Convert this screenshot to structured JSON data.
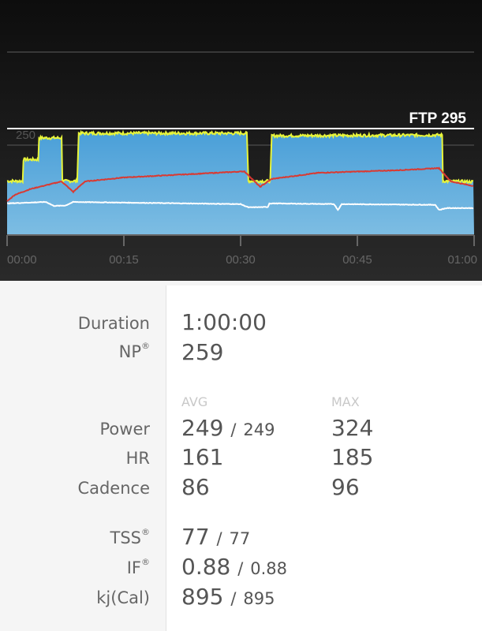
{
  "chart_data": {
    "type": "area",
    "x_unit": "minutes",
    "xlim": [
      0,
      60
    ],
    "ylim": [
      0,
      560
    ],
    "x_ticks": [
      "00:00",
      "00:15",
      "00:30",
      "00:45",
      "01:00"
    ],
    "y_ticks": [
      "250"
    ],
    "ftp_label": "FTP 295",
    "ftp": 295,
    "grid": true,
    "colors": {
      "power_fill": "#4a9fd8",
      "power_line": "#e8f53a",
      "hr": "#d93a32",
      "cadence": "#ffffff",
      "ftp": "#ffffff"
    },
    "series": [
      {
        "key": "power",
        "points": [
          [
            0,
            150
          ],
          [
            2,
            150
          ],
          [
            2.1,
            210
          ],
          [
            4,
            210
          ],
          [
            4.1,
            270
          ],
          [
            7,
            270
          ],
          [
            7.1,
            150
          ],
          [
            9,
            150
          ],
          [
            9.2,
            283
          ],
          [
            30.8,
            283
          ],
          [
            31,
            150
          ],
          [
            33.8,
            150
          ],
          [
            34,
            276
          ],
          [
            55.9,
            278
          ],
          [
            56,
            150
          ],
          [
            60,
            148
          ]
        ]
      },
      {
        "key": "hr",
        "points": [
          [
            0,
            94
          ],
          [
            1,
            112
          ],
          [
            3,
            128
          ],
          [
            7,
            149
          ],
          [
            8.5,
            120
          ],
          [
            10,
            149
          ],
          [
            15,
            160
          ],
          [
            25,
            171
          ],
          [
            30.5,
            177
          ],
          [
            32.5,
            134
          ],
          [
            34,
            156
          ],
          [
            40,
            173
          ],
          [
            50,
            180
          ],
          [
            55.5,
            186
          ],
          [
            57,
            149
          ],
          [
            60,
            136
          ]
        ]
      },
      {
        "key": "cadence",
        "points": [
          [
            0,
            88
          ],
          [
            5,
            92
          ],
          [
            6,
            81
          ],
          [
            7.5,
            82
          ],
          [
            8.5,
            92
          ],
          [
            30,
            86
          ],
          [
            31,
            77
          ],
          [
            33.5,
            78
          ],
          [
            33.7,
            88
          ],
          [
            42,
            86
          ],
          [
            42.5,
            70
          ],
          [
            43,
            86
          ],
          [
            55,
            84
          ],
          [
            55.5,
            70
          ],
          [
            56.5,
            75
          ],
          [
            60,
            75
          ]
        ]
      }
    ]
  },
  "stats": {
    "duration_label": "Duration",
    "duration": "1:00:00",
    "np_label": "NP",
    "np": "259",
    "avg_header": "AVG",
    "max_header": "MAX",
    "power_label": "Power",
    "power_avg": "249",
    "power_avg2": "249",
    "power_max": "324",
    "hr_label": "HR",
    "hr_avg": "161",
    "hr_max": "185",
    "cadence_label": "Cadence",
    "cadence_avg": "86",
    "cadence_max": "96",
    "tss_label": "TSS",
    "tss": "77",
    "tss2": "77",
    "if_label": "IF",
    "if": "0.88",
    "if2": "0.88",
    "kj_label": "kj(Cal)",
    "kj": "895",
    "kj2": "895",
    "sep": "/",
    "reg": "®"
  }
}
